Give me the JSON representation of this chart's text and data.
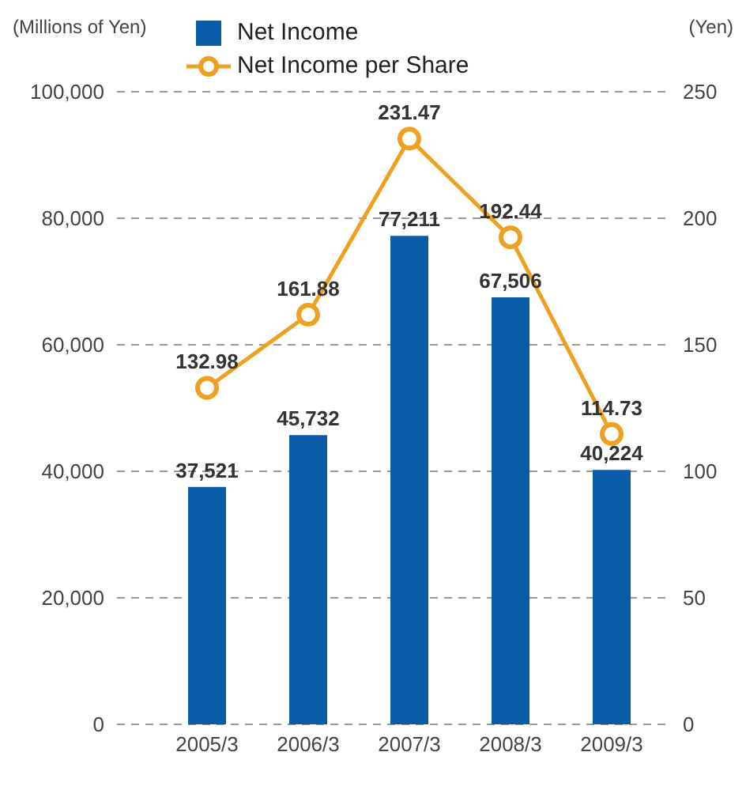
{
  "chart_data": {
    "type": "bar",
    "ylabel": "(Millions of Yen)",
    "y2label": "(Yen)",
    "categories": [
      "2005/3",
      "2006/3",
      "2007/3",
      "2008/3",
      "2009/3"
    ],
    "series": [
      {
        "name": "Net Income",
        "color": "#0a5ca8",
        "values": [
          37521,
          45732,
          77211,
          67506,
          40224
        ],
        "value_labels": [
          "37,521",
          "45,732",
          "77,211",
          "67,506",
          "40,224"
        ]
      },
      {
        "name": "Net Income per Share",
        "type": "line",
        "axis": "y2",
        "color": "#f0a020",
        "marker": "circle",
        "values": [
          132.98,
          161.88,
          231.47,
          192.44,
          114.73
        ]
      }
    ],
    "ylim": [
      0,
      100000
    ],
    "yticks": [
      0,
      {
        "value": 20000,
        "label": "20,000"
      },
      {
        "value": 40000,
        "label": "40,000"
      },
      {
        "value": 60000,
        "label": "60,000"
      },
      {
        "value": 80000,
        "label": "80,000"
      },
      {
        "value": 100000,
        "label": "100,000"
      }
    ],
    "y2lim": [
      0,
      250
    ],
    "y2ticks": [
      0,
      50,
      100,
      150,
      200,
      250
    ],
    "grid": "y",
    "legend": "top left",
    "data_labels": true
  }
}
